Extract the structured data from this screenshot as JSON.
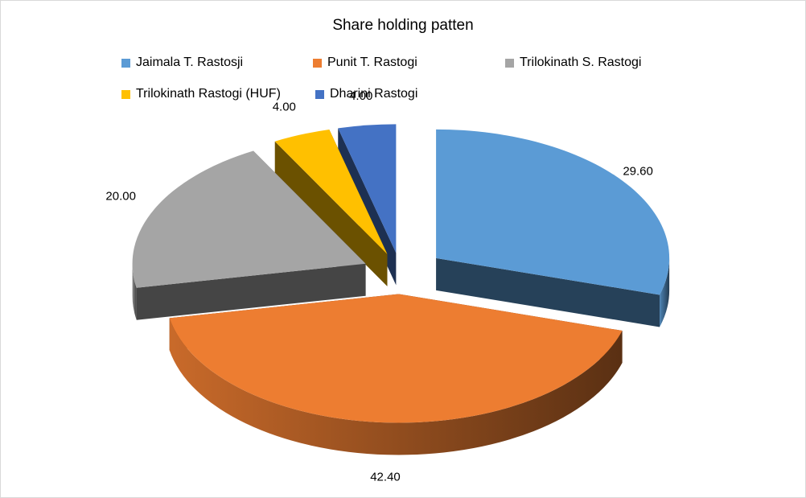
{
  "chart_data": {
    "type": "pie",
    "title": "Share holding patten",
    "legend_position": "top",
    "slices": [
      {
        "label": "Jaimala T. Rastosji",
        "value": 29.6,
        "value_label": "29.60",
        "color": "#5b9bd5"
      },
      {
        "label": "Punit T. Rastogi",
        "value": 42.4,
        "value_label": "42.40",
        "color": "#ed7d31"
      },
      {
        "label": "Trilokinath S. Rastogi",
        "value": 20.0,
        "value_label": "20.00",
        "color": "#a5a5a5"
      },
      {
        "label": "Trilokinath Rastogi (HUF)",
        "value": 4.0,
        "value_label": "4.00",
        "color": "#ffc000"
      },
      {
        "label": "Dharini Rastogi",
        "value": 4.0,
        "value_label": "4.00",
        "color": "#4472c4"
      }
    ]
  }
}
